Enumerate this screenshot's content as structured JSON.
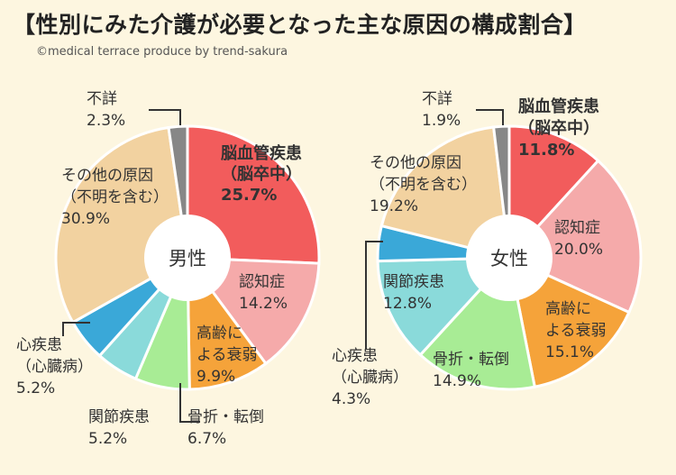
{
  "title": "【性別にみた介護が必要となった主な原因の構成割合】",
  "credit": "©medical terrace produce by trend-sakura",
  "colors": {
    "stroke": "#ffffff",
    "leader": "#333333",
    "hole": "#ffffff"
  },
  "chart_data": [
    {
      "type": "pie",
      "center_label": "男性",
      "slices": [
        {
          "label": "脳血管疾患\n（脳卒中）",
          "value": 25.7,
          "value_text": "25.7%",
          "color": "#f25c5c",
          "bold": true
        },
        {
          "label": "認知症",
          "value": 14.2,
          "value_text": "14.2%",
          "color": "#f5aaaa"
        },
        {
          "label": "高齢に\nよる衰弱",
          "value": 9.9,
          "value_text": "9.9%",
          "color": "#f5a33a"
        },
        {
          "label": "骨折・転倒",
          "value": 6.7,
          "value_text": "6.7%",
          "color": "#a8ec95"
        },
        {
          "label": "関節疾患",
          "value": 5.2,
          "value_text": "5.2%",
          "color": "#8adada"
        },
        {
          "label": "心疾患\n（心臓病）",
          "value": 5.2,
          "value_text": "5.2%",
          "color": "#3aa8d8"
        },
        {
          "label": "その他の原因\n（不明を含む）",
          "value": 30.9,
          "value_text": "30.9%",
          "color": "#f2d2a0"
        },
        {
          "label": "不詳",
          "value": 2.3,
          "value_text": "2.3%",
          "color": "#878787"
        }
      ]
    },
    {
      "type": "pie",
      "center_label": "女性",
      "slices": [
        {
          "label": "脳血管疾患\n（脳卒中）",
          "value": 11.8,
          "value_text": "11.8%",
          "color": "#f25c5c",
          "bold": true
        },
        {
          "label": "認知症",
          "value": 20.0,
          "value_text": "20.0%",
          "color": "#f5aaaa"
        },
        {
          "label": "高齢に\nよる衰弱",
          "value": 15.1,
          "value_text": "15.1%",
          "color": "#f5a33a"
        },
        {
          "label": "骨折・転倒",
          "value": 14.9,
          "value_text": "14.9%",
          "color": "#a8ec95"
        },
        {
          "label": "関節疾患",
          "value": 12.8,
          "value_text": "12.8%",
          "color": "#8adada"
        },
        {
          "label": "心疾患\n（心臓病）",
          "value": 4.3,
          "value_text": "4.3%",
          "color": "#3aa8d8"
        },
        {
          "label": "その他の原因\n（不明を含む）",
          "value": 19.2,
          "value_text": "19.2%",
          "color": "#f2d2a0"
        },
        {
          "label": "不詳",
          "value": 1.9,
          "value_text": "1.9%",
          "color": "#878787"
        }
      ]
    }
  ]
}
